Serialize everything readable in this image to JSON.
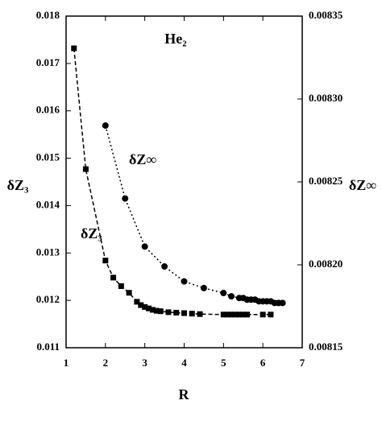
{
  "chart_data": {
    "type": "line",
    "title": "He₂",
    "x_label": "R",
    "y_label": "δZ₃",
    "y2_label": "δZ∞",
    "xlim": [
      1,
      7
    ],
    "xticks": [
      1,
      2,
      3,
      4,
      5,
      6,
      7
    ],
    "ylim": [
      0.011,
      0.018
    ],
    "yticks": [
      0.011,
      0.012,
      0.013,
      0.014,
      0.015,
      0.016,
      0.017,
      0.018
    ],
    "y2lim": [
      0.00815,
      0.00835
    ],
    "y2ticks": [
      0.00815,
      {
        "value": 0.0082,
        "label": "0.00820"
      },
      0.00825,
      {
        "value": 0.0083,
        "label": "0.00830"
      },
      0.00835
    ],
    "series": [
      {
        "name": "δZ₃",
        "color": "#000000",
        "marker": "square",
        "linestyle": "dashed",
        "x": [
          1.2,
          1.5,
          2.0,
          2.2,
          2.4,
          2.6,
          2.8,
          2.9,
          3.0,
          3.1,
          3.2,
          3.3,
          3.4,
          3.6,
          3.8,
          4.0,
          4.2,
          4.4,
          5.0,
          5.1,
          5.2,
          5.3,
          5.4,
          5.5,
          5.6,
          6.0,
          6.2
        ],
        "values": [
          0.01732,
          0.01477,
          0.01284,
          0.01248,
          0.0123,
          0.01216,
          0.01197,
          0.0119,
          0.01186,
          0.01183,
          0.0118,
          0.01178,
          0.01177,
          0.01175,
          0.01174,
          0.01173,
          0.01172,
          0.01171,
          0.0117,
          0.0117,
          0.0117,
          0.0117,
          0.0117,
          0.0117,
          0.0117,
          0.0117,
          0.0117
        ]
      },
      {
        "name": "δZ∞",
        "color": "#000000",
        "marker": "circle",
        "linestyle": "dotted",
        "axis": "y2",
        "x": [
          2.0,
          2.5,
          3.0,
          3.5,
          4.0,
          4.5,
          5.0,
          5.2,
          5.4,
          5.5,
          5.6,
          5.7,
          5.8,
          5.9,
          6.0,
          6.1,
          6.2,
          6.3,
          6.4,
          6.5
        ],
        "values": [
          0.008284,
          0.00824,
          0.008211,
          0.008199,
          0.00819,
          0.008186,
          0.008183,
          0.008181,
          0.00818,
          0.00818,
          0.008179,
          0.008179,
          0.008179,
          0.008178,
          0.008178,
          0.008178,
          0.008178,
          0.008177,
          0.008177,
          0.008177
        ]
      }
    ]
  }
}
